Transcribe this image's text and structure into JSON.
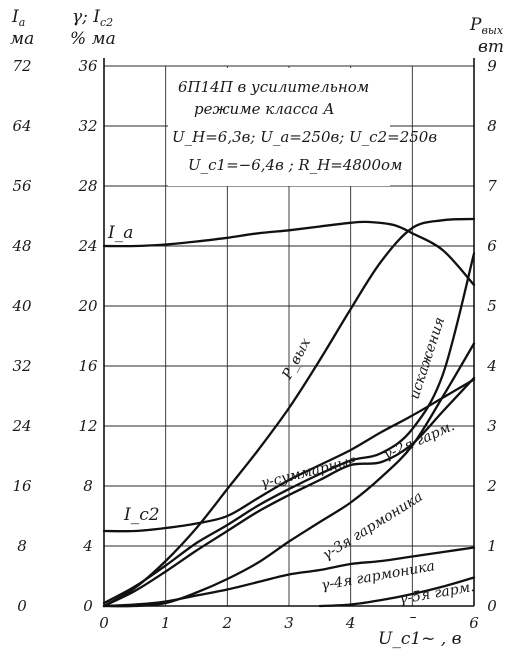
{
  "chart_data": {
    "type": "line",
    "title": [
      "6П14П в усилительном",
      "режиме класса А",
      "U_H=6,3в; U_a=250в; U_c2=250в",
      "U_c1=−6,4в ; R_H=4800ом"
    ],
    "x_label": "U_c1~ , в",
    "x_range": [
      0,
      6
    ],
    "x_ticks": [
      "0",
      "1",
      "2",
      "3",
      "4",
      "5",
      "6"
    ],
    "axes": {
      "ia": {
        "header": [
          "I_a",
          "ма"
        ],
        "range": [
          0,
          72
        ],
        "ticks": [
          "0",
          "8",
          "16",
          "24",
          "32",
          "40",
          "48",
          "56",
          "64",
          "72"
        ]
      },
      "gamma_ic2": {
        "header": [
          "γ; I_c2",
          "% ма"
        ],
        "range": [
          0,
          36
        ],
        "ticks": [
          "0",
          "4",
          "8",
          "12",
          "16",
          "20",
          "24",
          "28",
          "32",
          "36"
        ]
      },
      "pout": {
        "header": [
          "P_вых",
          "вт"
        ],
        "range": [
          0,
          9
        ],
        "ticks": [
          "0",
          "1",
          "2",
          "3",
          "4",
          "5",
          "6",
          "7",
          "8",
          "9"
        ]
      }
    },
    "series": [
      {
        "key": "ia",
        "name": "I_a",
        "axis": "ia",
        "points": [
          [
            0,
            48.0
          ],
          [
            0.5,
            48.0
          ],
          [
            1,
            48.2
          ],
          [
            1.5,
            48.6
          ],
          [
            2,
            49.1
          ],
          [
            2.5,
            49.7
          ],
          [
            3,
            50.1
          ],
          [
            3.5,
            50.6
          ],
          [
            4,
            51.1
          ],
          [
            4.3,
            51.2
          ],
          [
            4.7,
            50.8
          ],
          [
            5,
            49.7
          ],
          [
            5.5,
            47.4
          ],
          [
            6,
            42.8
          ]
        ]
      },
      {
        "key": "ic2",
        "name": "I_c2",
        "axis": "gamma_ic2",
        "points": [
          [
            0,
            5.0
          ],
          [
            0.5,
            5.0
          ],
          [
            1,
            5.2
          ],
          [
            1.5,
            5.5
          ],
          [
            2,
            6.0
          ],
          [
            2.5,
            7.2
          ],
          [
            3,
            8.4
          ],
          [
            3.5,
            9.4
          ],
          [
            4,
            10.4
          ],
          [
            4.5,
            11.6
          ],
          [
            5,
            12.7
          ],
          [
            5.5,
            13.9
          ],
          [
            6,
            15.1
          ]
        ]
      },
      {
        "key": "pout",
        "name": "P_вых",
        "axis": "pout",
        "points": [
          [
            0,
            0
          ],
          [
            0.5,
            0.3
          ],
          [
            1,
            0.75
          ],
          [
            1.5,
            1.3
          ],
          [
            2,
            1.95
          ],
          [
            2.5,
            2.6
          ],
          [
            3,
            3.3
          ],
          [
            3.5,
            4.1
          ],
          [
            4,
            4.95
          ],
          [
            4.5,
            5.75
          ],
          [
            5,
            6.3
          ],
          [
            5.5,
            6.43
          ],
          [
            6,
            6.45
          ]
        ]
      },
      {
        "key": "g_sum",
        "name": "γ-суммарные искажения",
        "axis": "gamma_ic2",
        "points": [
          [
            0,
            0.2
          ],
          [
            0.5,
            1.3
          ],
          [
            1,
            2.7
          ],
          [
            1.5,
            4.2
          ],
          [
            2,
            5.4
          ],
          [
            2.5,
            6.7
          ],
          [
            3,
            7.8
          ],
          [
            3.5,
            8.8
          ],
          [
            4,
            9.7
          ],
          [
            4.5,
            10.2
          ],
          [
            5,
            11.8
          ],
          [
            5.5,
            15.5
          ],
          [
            6,
            23.5
          ]
        ]
      },
      {
        "key": "g_2",
        "name": "γ-2я гарм.",
        "axis": "gamma_ic2",
        "points": [
          [
            0,
            0
          ],
          [
            0.5,
            1.0
          ],
          [
            1,
            2.3
          ],
          [
            1.5,
            3.7
          ],
          [
            2,
            5.0
          ],
          [
            2.5,
            6.3
          ],
          [
            3,
            7.4
          ],
          [
            3.5,
            8.4
          ],
          [
            4,
            9.4
          ],
          [
            4.5,
            9.6
          ],
          [
            5,
            10.8
          ],
          [
            5.5,
            13.0
          ],
          [
            6,
            15.2
          ]
        ]
      },
      {
        "key": "g_3",
        "name": "γ-3я гармоника",
        "axis": "gamma_ic2",
        "points": [
          [
            0,
            0
          ],
          [
            0.5,
            0
          ],
          [
            1,
            0.2
          ],
          [
            1.5,
            0.9
          ],
          [
            2,
            1.8
          ],
          [
            2.5,
            2.9
          ],
          [
            3,
            4.3
          ],
          [
            3.5,
            5.6
          ],
          [
            4,
            6.9
          ],
          [
            4.5,
            8.6
          ],
          [
            5,
            10.7
          ],
          [
            5.5,
            14.0
          ],
          [
            6,
            17.5
          ]
        ]
      },
      {
        "key": "g_4",
        "name": "γ-4я гармоника",
        "axis": "gamma_ic2",
        "points": [
          [
            0,
            0
          ],
          [
            0.5,
            0.1
          ],
          [
            1,
            0.3
          ],
          [
            1.5,
            0.7
          ],
          [
            2,
            1.1
          ],
          [
            2.5,
            1.6
          ],
          [
            3,
            2.1
          ],
          [
            3.5,
            2.4
          ],
          [
            4,
            2.8
          ],
          [
            4.5,
            3.0
          ],
          [
            5,
            3.3
          ],
          [
            5.5,
            3.6
          ],
          [
            6,
            3.9
          ]
        ]
      },
      {
        "key": "g_5",
        "name": "γ-5я гарм.",
        "axis": "gamma_ic2",
        "points": [
          [
            3.5,
            0
          ],
          [
            4,
            0.1
          ],
          [
            4.5,
            0.4
          ],
          [
            5,
            0.8
          ],
          [
            5.5,
            1.3
          ],
          [
            6,
            1.9
          ]
        ]
      }
    ],
    "annotations": {
      "ia": "I_a",
      "ic2": "I_c2",
      "pout": "P_вых",
      "g_sum_a": "γ-суммарные",
      "g_sum_b": "искажения",
      "g_2": "γ-2я гарм.",
      "g_3": "γ-3я гармоника",
      "g_4": "γ-4я гармоника",
      "g_5": "γ-5я гарм."
    },
    "grid": true,
    "curve_color": "#111111"
  }
}
